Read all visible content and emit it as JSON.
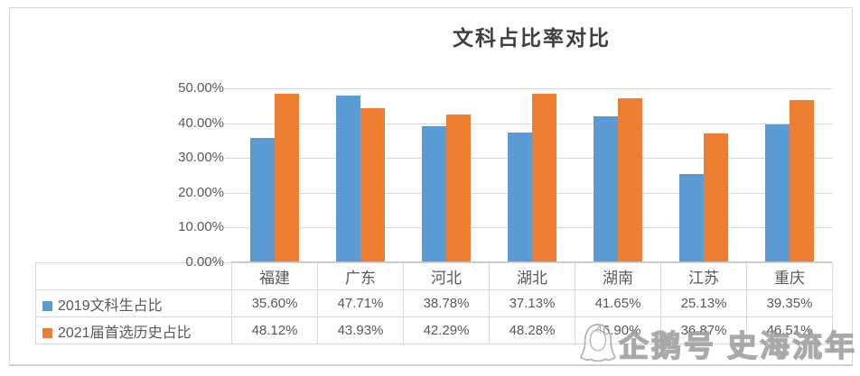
{
  "title": "文科占比率对比",
  "watermark": {
    "text": "企鹅号 史海流年"
  },
  "colors": {
    "series_2019": "#5B9BD5",
    "series_2021": "#ED7D31",
    "gridline": "#D9D9D9",
    "table_border": "#D9D9D9",
    "label_text": "#595959",
    "title_text": "#3F3F3F"
  },
  "chart_data": {
    "type": "bar",
    "title": "文科占比率对比",
    "categories": [
      "福建",
      "广东",
      "河北",
      "湖北",
      "湖南",
      "江苏",
      "重庆"
    ],
    "series": [
      {
        "name": "2019文科生占比",
        "color": "#5B9BD5",
        "values": [
          35.6,
          47.71,
          38.78,
          37.13,
          41.65,
          25.13,
          39.35
        ]
      },
      {
        "name": "2021届首选历史占比",
        "color": "#ED7D31",
        "values": [
          48.12,
          43.93,
          42.29,
          48.28,
          46.9,
          36.87,
          46.51
        ]
      }
    ],
    "ylim": [
      0,
      50
    ],
    "yticks": [
      0,
      10,
      20,
      30,
      40,
      50
    ],
    "ytick_labels": [
      "0.00%",
      "10.00%",
      "20.00%",
      "30.00%",
      "40.00%",
      "50.00%"
    ],
    "value_format": "percent2",
    "grid": true,
    "legend_position": "data-table-left"
  }
}
